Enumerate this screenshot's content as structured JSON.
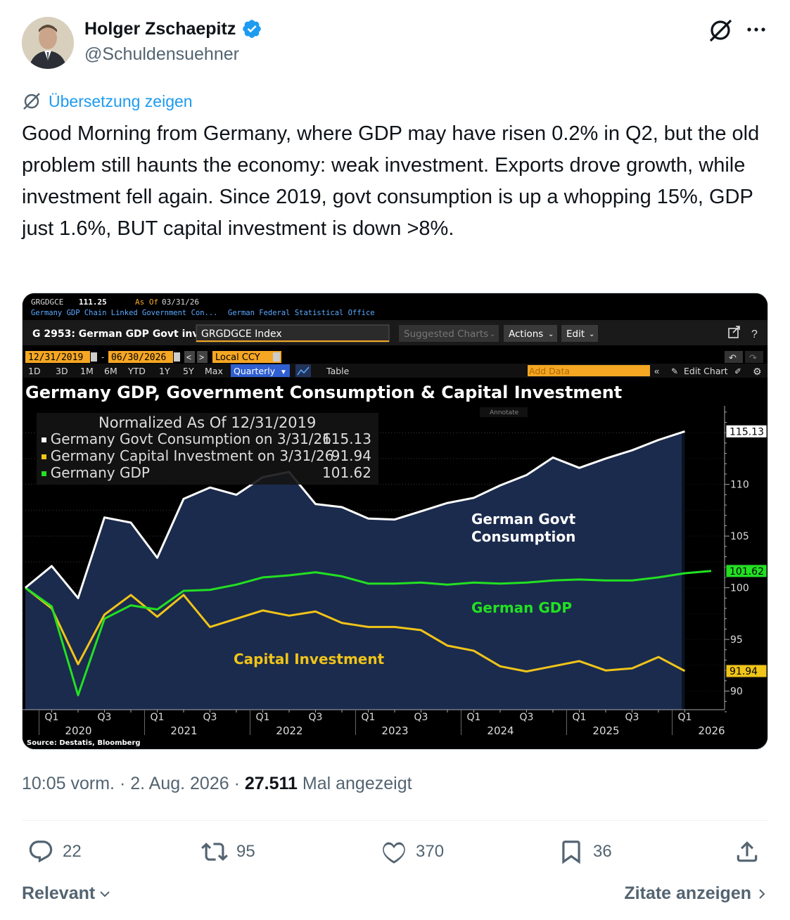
{
  "author": {
    "name": "Holger Zschaepitz",
    "handle": "@Schuldensuehner",
    "verified_color": "#1d9bf0"
  },
  "translate_label": "Übersetzung zeigen",
  "tweet_text": "Good Morning from Germany, where GDP may have risen 0.2% in Q2, but the old problem still haunts the economy: weak investment. Exports drove growth, while investment fell again. Since 2019, govt consumption is up a whopping 15%, GDP just 1.6%, BUT capital investment is down >8%.",
  "meta": {
    "time": "10:05 vorm. · 2. Aug. 2026 · ",
    "views": "27.511",
    "views_label": " Mal angezeigt"
  },
  "actions": {
    "replies": "22",
    "reposts": "95",
    "likes": "370",
    "bookmarks": "36"
  },
  "footer": {
    "sort_label": "Relevant",
    "quotes_label": "Zitate anzeigen"
  },
  "terminal": {
    "ticker": "GRGDGCE",
    "ticker_value": "111.25",
    "as_of_label": "As Of",
    "as_of_date": "03/31/26",
    "subtitle_left": "Germany GDP Chain Linked Government Con...",
    "subtitle_right": "German Federal Statistical Office",
    "page_label": "G 2953: German GDP Govt inv",
    "index_field": "GRGDGCE Index",
    "suggested": "Suggested Charts",
    "actions_menu": "Actions",
    "edit_menu": "Edit",
    "start_date": "12/31/2019",
    "end_date": "06/30/2026",
    "currency": "Local CCY",
    "ranges": [
      "1D",
      "3D",
      "1M",
      "6M",
      "YTD",
      "1Y",
      "5Y",
      "Max"
    ],
    "period": "Quarterly",
    "table_label": "Table",
    "add_data": "Add Data",
    "edit_chart": "Edit Chart",
    "annotate": "Annotate",
    "source": "Source: Destatis, Bloomberg"
  },
  "chart_data": {
    "type": "line",
    "title": "Germany GDP, Government Consumption & Capital Investment",
    "legend_header": "Normalized As Of 12/31/2019",
    "legend": [
      {
        "label": "Germany Govt Consumption on 3/31/26",
        "value": "115.13",
        "color": "#ffffff"
      },
      {
        "label": "Germany Capital Investment on 3/31/26",
        "value": "91.94",
        "color": "#f0c419"
      },
      {
        "label": "Germany GDP",
        "value": "101.62",
        "color": "#22e022"
      }
    ],
    "annotations": {
      "govt": [
        "German Govt",
        "Consumption"
      ],
      "gdp": "German GDP",
      "capex": "Capital Investment"
    },
    "x": [
      "2019-Q4",
      "2020-Q1",
      "2020-Q2",
      "2020-Q3",
      "2020-Q4",
      "2021-Q1",
      "2021-Q2",
      "2021-Q3",
      "2021-Q4",
      "2022-Q1",
      "2022-Q2",
      "2022-Q3",
      "2022-Q4",
      "2023-Q1",
      "2023-Q2",
      "2023-Q3",
      "2023-Q4",
      "2024-Q1",
      "2024-Q2",
      "2024-Q3",
      "2024-Q4",
      "2025-Q1",
      "2025-Q2",
      "2025-Q3",
      "2025-Q4",
      "2026-Q1",
      "2026-Q2"
    ],
    "x_tick_labels": [
      {
        "q": "Q1",
        "year": "2020"
      },
      {
        "q": "Q3",
        "year": ""
      },
      {
        "q": "Q1",
        "year": "2021"
      },
      {
        "q": "Q3",
        "year": ""
      },
      {
        "q": "Q1",
        "year": "2022"
      },
      {
        "q": "Q3",
        "year": ""
      },
      {
        "q": "Q1",
        "year": "2023"
      },
      {
        "q": "Q3",
        "year": ""
      },
      {
        "q": "Q1",
        "year": "2024"
      },
      {
        "q": "Q3",
        "year": ""
      },
      {
        "q": "Q1",
        "year": "2025"
      },
      {
        "q": "Q3",
        "year": ""
      },
      {
        "q": "Q1",
        "year": "2026"
      }
    ],
    "y_ticks": [
      90,
      95,
      100,
      105,
      110
    ],
    "ylim": [
      88.2,
      117.6
    ],
    "series": [
      {
        "name": "Germany Govt Consumption",
        "color": "#ffffff",
        "values": [
          100.0,
          102.1,
          99.0,
          106.8,
          106.3,
          102.9,
          108.6,
          109.7,
          109.0,
          110.7,
          111.2,
          108.1,
          107.8,
          106.7,
          106.6,
          107.4,
          108.2,
          108.7,
          109.9,
          110.9,
          112.6,
          111.6,
          112.5,
          113.3,
          114.3,
          115.13,
          null
        ]
      },
      {
        "name": "Germany Capital Investment",
        "color": "#f0c419",
        "values": [
          100.0,
          98.0,
          92.6,
          97.4,
          99.3,
          97.2,
          99.3,
          96.2,
          97.0,
          97.8,
          97.3,
          97.7,
          96.6,
          96.2,
          96.2,
          95.9,
          94.4,
          93.9,
          92.4,
          91.9,
          92.4,
          92.9,
          92.0,
          92.2,
          93.3,
          91.94,
          null
        ]
      },
      {
        "name": "Germany GDP",
        "color": "#22e022",
        "values": [
          100.0,
          98.2,
          89.6,
          97.0,
          98.3,
          97.9,
          99.7,
          99.8,
          100.3,
          101.0,
          101.2,
          101.5,
          101.1,
          100.4,
          100.4,
          100.5,
          100.3,
          100.5,
          100.4,
          100.5,
          100.7,
          100.8,
          100.7,
          100.7,
          101.0,
          101.4,
          101.62
        ]
      }
    ],
    "end_labels": [
      "115.13",
      "101.62",
      "91.94"
    ]
  }
}
